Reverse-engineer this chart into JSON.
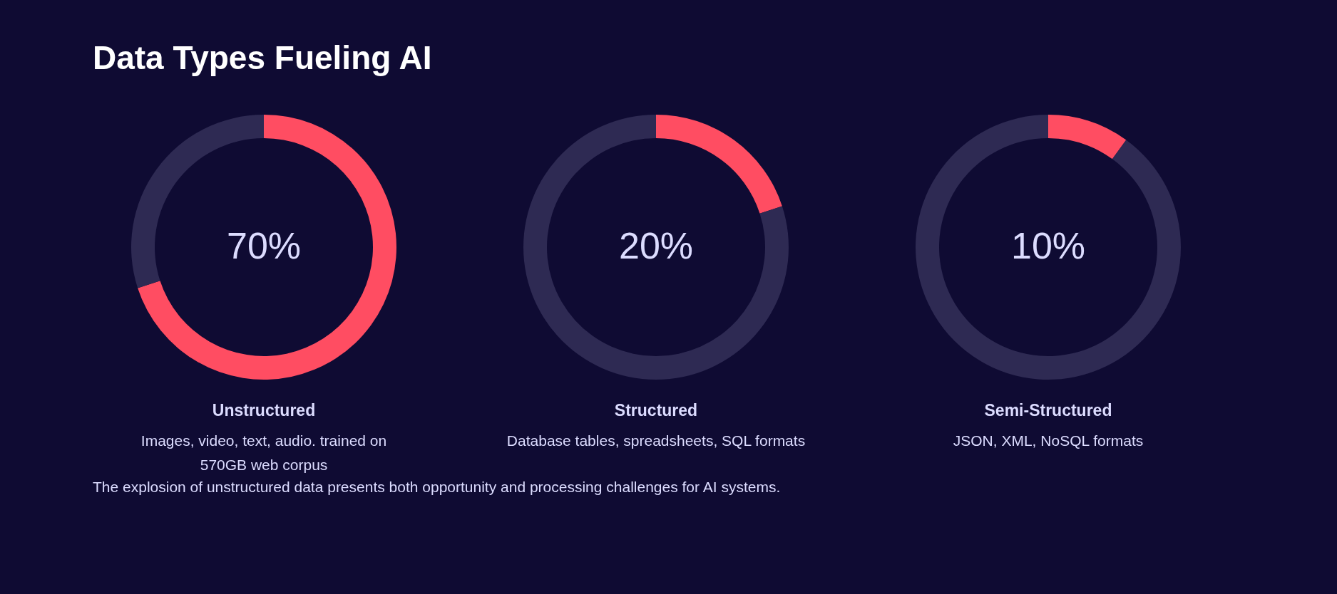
{
  "chart_data": [
    {
      "type": "donut",
      "title": "Data Types Fueling AI",
      "xlabel": "Unstructured",
      "categories": [
        null,
        null
      ],
      "values": [
        70,
        30
      ],
      "colors": [
        "#ff4d62",
        "#2e2a53"
      ],
      "value_labels": [
        "70%",
        null
      ],
      "subtitle": "Images, video, text, audio. trained on 570GB web corpus",
      "legend": false
    },
    {
      "type": "donut",
      "xlabel": "Structured",
      "categories": [
        null,
        null
      ],
      "values": [
        20,
        80
      ],
      "colors": [
        "#ff4d62",
        "#2e2a53"
      ],
      "value_labels": [
        "20%",
        null
      ],
      "subtitle": "Database tables, spreadsheets, SQL formats",
      "legend": false
    },
    {
      "type": "donut",
      "xlabel": "Semi-Structured",
      "categories": [
        null,
        null
      ],
      "values": [
        10,
        90
      ],
      "colors": [
        "#ff4d62",
        "#2e2a53"
      ],
      "value_labels": [
        "10%",
        null
      ],
      "subtitle": "JSON, XML, NoSQL formats",
      "legend": false,
      "annotations": [
        "The explosion of unstructured data presents both opportunity and processing challenges for AI systems."
      ]
    }
  ]
}
